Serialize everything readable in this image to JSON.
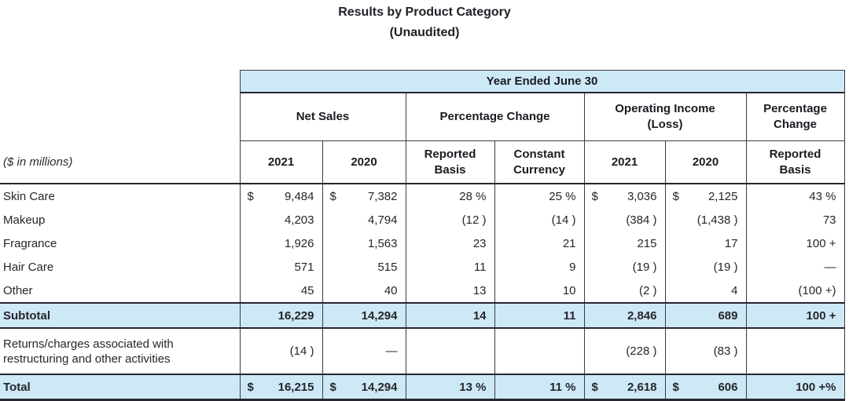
{
  "title": {
    "line1": "Results by Product Category",
    "line2": "(Unaudited)"
  },
  "colors": {
    "highlight_blue": "#cee9f6",
    "border_dark": "#2b2b34",
    "text": "#26262c"
  },
  "table": {
    "band_header": "Year Ended June 30",
    "groups": [
      {
        "l1": "Net Sales",
        "l2": ""
      },
      {
        "l1": "Percentage Change",
        "l2": ""
      },
      {
        "l1": "Operating Income",
        "l2": "(Loss)"
      },
      {
        "l1": "Percentage",
        "l2": "Change"
      }
    ],
    "millions_note": "($ in millions)",
    "col_headers": [
      {
        "l1": "2021",
        "l2": ""
      },
      {
        "l1": "2020",
        "l2": ""
      },
      {
        "l1": "Reported",
        "l2": "Basis"
      },
      {
        "l1": "Constant",
        "l2": "Currency"
      },
      {
        "l1": "2021",
        "l2": ""
      },
      {
        "l1": "2020",
        "l2": ""
      },
      {
        "l1": "Reported",
        "l2": "Basis"
      }
    ],
    "rows": [
      {
        "label": "Skin Care",
        "cells": [
          {
            "d": "$",
            "v": "9,484"
          },
          {
            "d": "$",
            "v": "7,382"
          },
          {
            "v": "28 %"
          },
          {
            "v": "25 %"
          },
          {
            "d": "$",
            "v": "3,036"
          },
          {
            "d": "$",
            "v": "2,125"
          },
          {
            "v": "43 %"
          }
        ]
      },
      {
        "label": "Makeup",
        "cells": [
          {
            "v": "4,203"
          },
          {
            "v": "4,794"
          },
          {
            "v": "(12 )"
          },
          {
            "v": "(14 )"
          },
          {
            "v": "(384 )"
          },
          {
            "v": "(1,438 )"
          },
          {
            "v": "73"
          }
        ]
      },
      {
        "label": "Fragrance",
        "cells": [
          {
            "v": "1,926"
          },
          {
            "v": "1,563"
          },
          {
            "v": "23"
          },
          {
            "v": "21"
          },
          {
            "v": "215"
          },
          {
            "v": "17"
          },
          {
            "v": "100 +"
          }
        ]
      },
      {
        "label": "Hair Care",
        "cells": [
          {
            "v": "571"
          },
          {
            "v": "515"
          },
          {
            "v": "11"
          },
          {
            "v": "9"
          },
          {
            "v": "(19 )"
          },
          {
            "v": "(19 )"
          },
          {
            "v": "—"
          }
        ]
      },
      {
        "label": "Other",
        "cells": [
          {
            "v": "45"
          },
          {
            "v": "40"
          },
          {
            "v": "13"
          },
          {
            "v": "10"
          },
          {
            "v": "(2 )"
          },
          {
            "v": "4"
          },
          {
            "v": "(100 +)"
          }
        ]
      }
    ],
    "subtotal": {
      "label": "Subtotal",
      "cells": [
        {
          "v": "16,229"
        },
        {
          "v": "14,294"
        },
        {
          "v": "14"
        },
        {
          "v": "11"
        },
        {
          "v": "2,846"
        },
        {
          "v": "689"
        },
        {
          "v": "100 +"
        }
      ]
    },
    "returns_row": {
      "label_l1": "Returns/charges associated with",
      "label_l2": "restructuring and other activities",
      "cells": [
        {
          "v": "(14 )"
        },
        {
          "v": "—"
        },
        {
          "v": ""
        },
        {
          "v": ""
        },
        {
          "v": "(228 )"
        },
        {
          "v": "(83 )"
        },
        {
          "v": ""
        }
      ]
    },
    "total": {
      "label": "Total",
      "cells": [
        {
          "d": "$",
          "v": "16,215"
        },
        {
          "d": "$",
          "v": "14,294"
        },
        {
          "v": "13 %"
        },
        {
          "v": "11 %"
        },
        {
          "d": "$",
          "v": "2,618"
        },
        {
          "d": "$",
          "v": "606"
        },
        {
          "v": "100 +%"
        }
      ]
    }
  }
}
